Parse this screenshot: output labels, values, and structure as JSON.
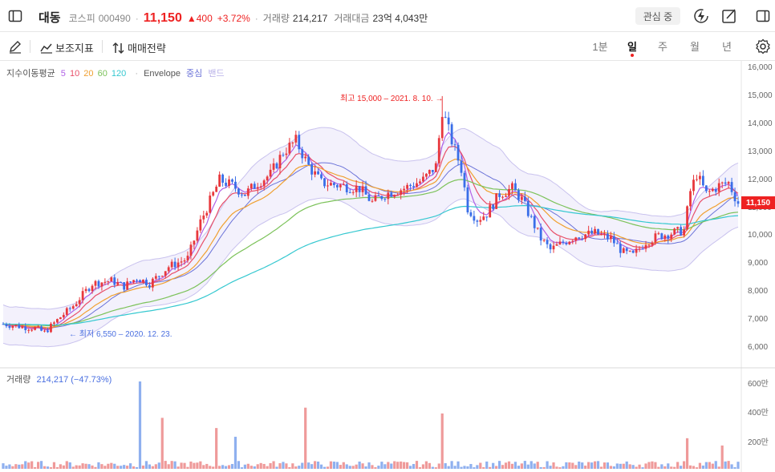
{
  "header": {
    "stock_name": "대동",
    "market": "코스피",
    "code": "000490",
    "separator": "·",
    "price": "11,150",
    "change": "▲400",
    "change_pct": "+3.72%",
    "volume_label": "거래량",
    "volume_value": "214,217",
    "amount_label": "거래대금",
    "amount_value": "23억 4,043만",
    "watch_button": "관심 중",
    "icons": [
      "sidebar-toggle-icon",
      "lightning-icon",
      "edit-note-icon",
      "panel-icon"
    ]
  },
  "toolbar": {
    "draw_icon": "pencil-icon",
    "indicator_label": "보조지표",
    "strategy_label": "매매전략",
    "periods": [
      {
        "label": "1분",
        "active": false
      },
      {
        "label": "일",
        "active": true
      },
      {
        "label": "주",
        "active": false
      },
      {
        "label": "월",
        "active": false
      },
      {
        "label": "년",
        "active": false
      }
    ],
    "settings_icon": "gear-icon"
  },
  "legend": {
    "title": "지수이동평균",
    "ma": [
      {
        "label": "5",
        "color": "#b061e6"
      },
      {
        "label": "10",
        "color": "#e8506a"
      },
      {
        "label": "20",
        "color": "#f0a030"
      },
      {
        "label": "60",
        "color": "#7cc25a"
      },
      {
        "label": "120",
        "color": "#35c8d0"
      }
    ],
    "envelope_label": "Envelope",
    "envelope_center": "중심",
    "envelope_band": "밴드"
  },
  "annotations": {
    "high": "최고 15,000 – 2021. 8. 10. →",
    "low": "← 최저 6,550 – 2020. 12. 23."
  },
  "current_price_tag": "11,150",
  "volume_legend": {
    "label": "거래량",
    "value": "214,217 (−47.73%)"
  },
  "chart_data": {
    "type": "candlestick",
    "y_axis_labels": [
      "16,000",
      "15,000",
      "14,000",
      "13,000",
      "12,000",
      "11,000",
      "10,000",
      "9,000",
      "8,000",
      "7,000",
      "6,000"
    ],
    "ylim": [
      5800,
      16300
    ],
    "volume_axis_labels": [
      "600만",
      "400만",
      "200만"
    ],
    "volume_ylim": [
      0,
      620
    ],
    "high": {
      "value": 15000,
      "date": "2021. 8. 10."
    },
    "low": {
      "value": 6550,
      "date": "2020. 12. 23."
    },
    "last": 11150,
    "price_path": [
      [
        0,
        6850
      ],
      [
        6,
        6750
      ],
      [
        10,
        6700
      ],
      [
        13,
        6550
      ],
      [
        18,
        7100
      ],
      [
        22,
        7500
      ],
      [
        28,
        8300
      ],
      [
        34,
        8400
      ],
      [
        38,
        8200
      ],
      [
        42,
        8500
      ],
      [
        46,
        8300
      ],
      [
        52,
        8900
      ],
      [
        58,
        9200
      ],
      [
        62,
        10500
      ],
      [
        64,
        11000
      ],
      [
        68,
        12000
      ],
      [
        72,
        11800
      ],
      [
        76,
        11500
      ],
      [
        80,
        11900
      ],
      [
        84,
        12200
      ],
      [
        88,
        13000
      ],
      [
        92,
        13400
      ],
      [
        96,
        12500
      ],
      [
        100,
        11900
      ],
      [
        106,
        11800
      ],
      [
        112,
        11700
      ],
      [
        116,
        11200
      ],
      [
        120,
        11500
      ],
      [
        126,
        11700
      ],
      [
        132,
        12000
      ],
      [
        136,
        12500
      ],
      [
        138,
        14500
      ],
      [
        141,
        13400
      ],
      [
        144,
        12400
      ],
      [
        146,
        11000
      ],
      [
        149,
        10600
      ],
      [
        152,
        10800
      ],
      [
        156,
        11500
      ],
      [
        160,
        11700
      ],
      [
        163,
        11300
      ],
      [
        166,
        10600
      ],
      [
        169,
        9900
      ],
      [
        172,
        9500
      ],
      [
        175,
        9700
      ],
      [
        180,
        10000
      ],
      [
        186,
        10100
      ],
      [
        191,
        9900
      ],
      [
        195,
        9400
      ],
      [
        198,
        9300
      ],
      [
        202,
        9800
      ],
      [
        206,
        10000
      ],
      [
        210,
        10100
      ],
      [
        214,
        10200
      ],
      [
        216,
        11600
      ],
      [
        218,
        12200
      ],
      [
        221,
        11500
      ],
      [
        225,
        11800
      ],
      [
        228,
        11900
      ],
      [
        231,
        11150
      ]
    ],
    "volume_spikes": [
      {
        "i": 43,
        "v": 600
      },
      {
        "i": 50,
        "v": 350
      },
      {
        "i": 67,
        "v": 280
      },
      {
        "i": 73,
        "v": 220
      },
      {
        "i": 95,
        "v": 420
      },
      {
        "i": 138,
        "v": 380
      },
      {
        "i": 215,
        "v": 210
      },
      {
        "i": 226,
        "v": 160
      }
    ]
  }
}
